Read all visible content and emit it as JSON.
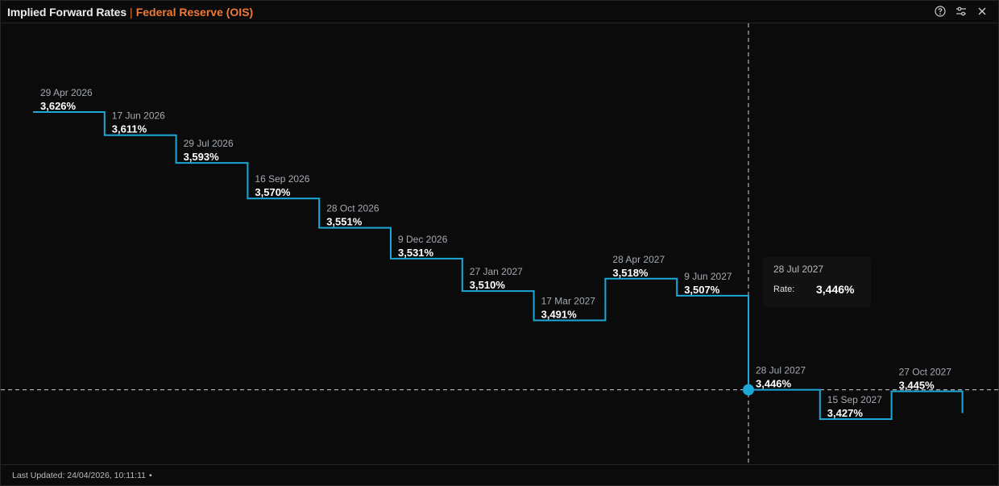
{
  "header": {
    "title": "Implied Forward Rates",
    "separator": "|",
    "subtitle": "Federal Reserve (OIS)",
    "icons": [
      "help-icon",
      "settings-sliders-icon",
      "close-icon"
    ]
  },
  "footer": {
    "last_updated": "Last Updated: 24/04/2026, 10:11:11",
    "dot": "•"
  },
  "tooltip": {
    "date": "28 Jul 2027",
    "key": "Rate:",
    "value": "3,446%"
  },
  "colors": {
    "line": "#1ba8d6",
    "accent": "#f07a35",
    "background": "#0b0b0b"
  },
  "chart_data": {
    "type": "line",
    "step": true,
    "grid": false,
    "crosshair_index": 10,
    "points": [
      {
        "date": "29 Apr 2026",
        "label": "3,626%",
        "value": 3.626
      },
      {
        "date": "17 Jun 2026",
        "label": "3,611%",
        "value": 3.611
      },
      {
        "date": "29 Jul 2026",
        "label": "3,593%",
        "value": 3.593
      },
      {
        "date": "16 Sep 2026",
        "label": "3,570%",
        "value": 3.57
      },
      {
        "date": "28 Oct 2026",
        "label": "3,551%",
        "value": 3.551
      },
      {
        "date": "9 Dec 2026",
        "label": "3,531%",
        "value": 3.531
      },
      {
        "date": "27 Jan 2027",
        "label": "3,510%",
        "value": 3.51
      },
      {
        "date": "17 Mar 2027",
        "label": "3,491%",
        "value": 3.491
      },
      {
        "date": "28 Apr 2027",
        "label": "3,518%",
        "value": 3.518
      },
      {
        "date": "9 Jun 2027",
        "label": "3,507%",
        "value": 3.507
      },
      {
        "date": "28 Jul 2027",
        "label": "3,446%",
        "value": 3.446
      },
      {
        "date": "15 Sep 2027",
        "label": "3,427%",
        "value": 3.427
      },
      {
        "date": "27 Oct 2027",
        "label": "3,445%",
        "value": 3.445
      }
    ]
  }
}
